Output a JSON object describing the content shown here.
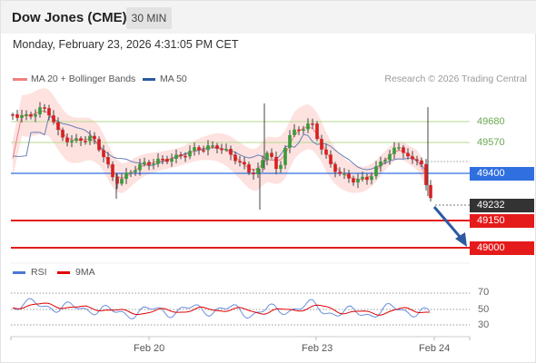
{
  "header": {
    "title": "Dow Jones (CME)",
    "timeframe": "30 MIN"
  },
  "timestamp": "Monday, February 23, 2026 4:31:05 PM CET",
  "legend": {
    "ma20_label": "MA 20 + Bollinger Bands",
    "ma20_color": "#f08080",
    "ma50_label": "MA 50",
    "ma50_color": "#2c5aa0"
  },
  "copyright": "Research © 2026 Trading Central",
  "rsi_legend": {
    "rsi_label": "RSI",
    "rsi_color": "#4a78d8",
    "ma_label": "9MA",
    "ma_color": "#e00000"
  },
  "levels": {
    "resistance_2": "49680",
    "resistance_1": "49570",
    "pivot": "49400",
    "last_price": "49232",
    "support_1": "49150",
    "support_2": "49000"
  },
  "rsi_ticks": [
    "70",
    "50",
    "30"
  ],
  "x_labels": [
    "Feb 20",
    "Feb 23",
    "Feb 24"
  ],
  "colors": {
    "up_candle": "#3a9a3a",
    "down_candle": "#d62020",
    "bollinger_fill": "#fde2e0",
    "pivot_line": "#2f6fe0",
    "support_line": "#e51b1b",
    "resistance_line": "#b6d98c",
    "arrow": "#2c5aa0"
  }
}
